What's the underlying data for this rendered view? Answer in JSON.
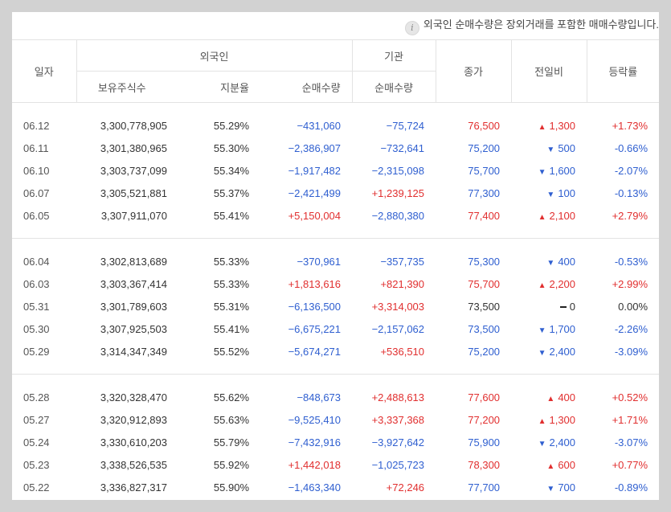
{
  "notice": {
    "icon": "info-icon",
    "text": "외국인 순매수량은 장외거래를 포함한 매매수량입니다."
  },
  "header": {
    "date": "일자",
    "foreigner": "외국인",
    "institution": "기관",
    "holdings": "보유주식수",
    "share_ratio": "지분율",
    "foreign_net": "순매수량",
    "inst_net": "순매수량",
    "close": "종가",
    "change": "전일비",
    "rate": "등락률"
  },
  "colors": {
    "up": "#e12f2f",
    "down": "#2f5fd0"
  },
  "groups": [
    [
      {
        "date": "06.12",
        "holdings": "3,300,778,905",
        "ratio": "55.29%",
        "fnet": "−431,060",
        "fdir": "down",
        "inet": "−75,724",
        "idir": "down",
        "close": "76,500",
        "cdir": "up",
        "chg": "1,300",
        "rate": "+1.73%"
      },
      {
        "date": "06.11",
        "holdings": "3,301,380,965",
        "ratio": "55.30%",
        "fnet": "−2,386,907",
        "fdir": "down",
        "inet": "−732,641",
        "idir": "down",
        "close": "75,200",
        "cdir": "down",
        "chg": "500",
        "rate": "-0.66%"
      },
      {
        "date": "06.10",
        "holdings": "3,303,737,099",
        "ratio": "55.34%",
        "fnet": "−1,917,482",
        "fdir": "down",
        "inet": "−2,315,098",
        "idir": "down",
        "close": "75,700",
        "cdir": "down",
        "chg": "1,600",
        "rate": "-2.07%"
      },
      {
        "date": "06.07",
        "holdings": "3,305,521,881",
        "ratio": "55.37%",
        "fnet": "−2,421,499",
        "fdir": "down",
        "inet": "+1,239,125",
        "idir": "up",
        "close": "77,300",
        "cdir": "down",
        "chg": "100",
        "rate": "-0.13%"
      },
      {
        "date": "06.05",
        "holdings": "3,307,911,070",
        "ratio": "55.41%",
        "fnet": "+5,150,004",
        "fdir": "up",
        "inet": "−2,880,380",
        "idir": "down",
        "close": "77,400",
        "cdir": "up",
        "chg": "2,100",
        "rate": "+2.79%"
      }
    ],
    [
      {
        "date": "06.04",
        "holdings": "3,302,813,689",
        "ratio": "55.33%",
        "fnet": "−370,961",
        "fdir": "down",
        "inet": "−357,735",
        "idir": "down",
        "close": "75,300",
        "cdir": "down",
        "chg": "400",
        "rate": "-0.53%"
      },
      {
        "date": "06.03",
        "holdings": "3,303,367,414",
        "ratio": "55.33%",
        "fnet": "+1,813,616",
        "fdir": "up",
        "inet": "+821,390",
        "idir": "up",
        "close": "75,700",
        "cdir": "up",
        "chg": "2,200",
        "rate": "+2.99%"
      },
      {
        "date": "05.31",
        "holdings": "3,301,789,603",
        "ratio": "55.31%",
        "fnet": "−6,136,500",
        "fdir": "down",
        "inet": "+3,314,003",
        "idir": "up",
        "close": "73,500",
        "cdir": "flat",
        "chg": "0",
        "rate": "0.00%"
      },
      {
        "date": "05.30",
        "holdings": "3,307,925,503",
        "ratio": "55.41%",
        "fnet": "−6,675,221",
        "fdir": "down",
        "inet": "−2,157,062",
        "idir": "down",
        "close": "73,500",
        "cdir": "down",
        "chg": "1,700",
        "rate": "-2.26%"
      },
      {
        "date": "05.29",
        "holdings": "3,314,347,349",
        "ratio": "55.52%",
        "fnet": "−5,674,271",
        "fdir": "down",
        "inet": "+536,510",
        "idir": "up",
        "close": "75,200",
        "cdir": "down",
        "chg": "2,400",
        "rate": "-3.09%"
      }
    ],
    [
      {
        "date": "05.28",
        "holdings": "3,320,328,470",
        "ratio": "55.62%",
        "fnet": "−848,673",
        "fdir": "down",
        "inet": "+2,488,613",
        "idir": "up",
        "close": "77,600",
        "cdir": "up",
        "chg": "400",
        "rate": "+0.52%"
      },
      {
        "date": "05.27",
        "holdings": "3,320,912,893",
        "ratio": "55.63%",
        "fnet": "−9,525,410",
        "fdir": "down",
        "inet": "+3,337,368",
        "idir": "up",
        "close": "77,200",
        "cdir": "up",
        "chg": "1,300",
        "rate": "+1.71%"
      },
      {
        "date": "05.24",
        "holdings": "3,330,610,203",
        "ratio": "55.79%",
        "fnet": "−7,432,916",
        "fdir": "down",
        "inet": "−3,927,642",
        "idir": "down",
        "close": "75,900",
        "cdir": "down",
        "chg": "2,400",
        "rate": "-3.07%"
      },
      {
        "date": "05.23",
        "holdings": "3,338,526,535",
        "ratio": "55.92%",
        "fnet": "+1,442,018",
        "fdir": "up",
        "inet": "−1,025,723",
        "idir": "down",
        "close": "78,300",
        "cdir": "up",
        "chg": "600",
        "rate": "+0.77%"
      },
      {
        "date": "05.22",
        "holdings": "3,336,827,317",
        "ratio": "55.90%",
        "fnet": "−1,463,340",
        "fdir": "down",
        "inet": "+72,246",
        "idir": "up",
        "close": "77,700",
        "cdir": "down",
        "chg": "700",
        "rate": "-0.89%"
      }
    ]
  ]
}
